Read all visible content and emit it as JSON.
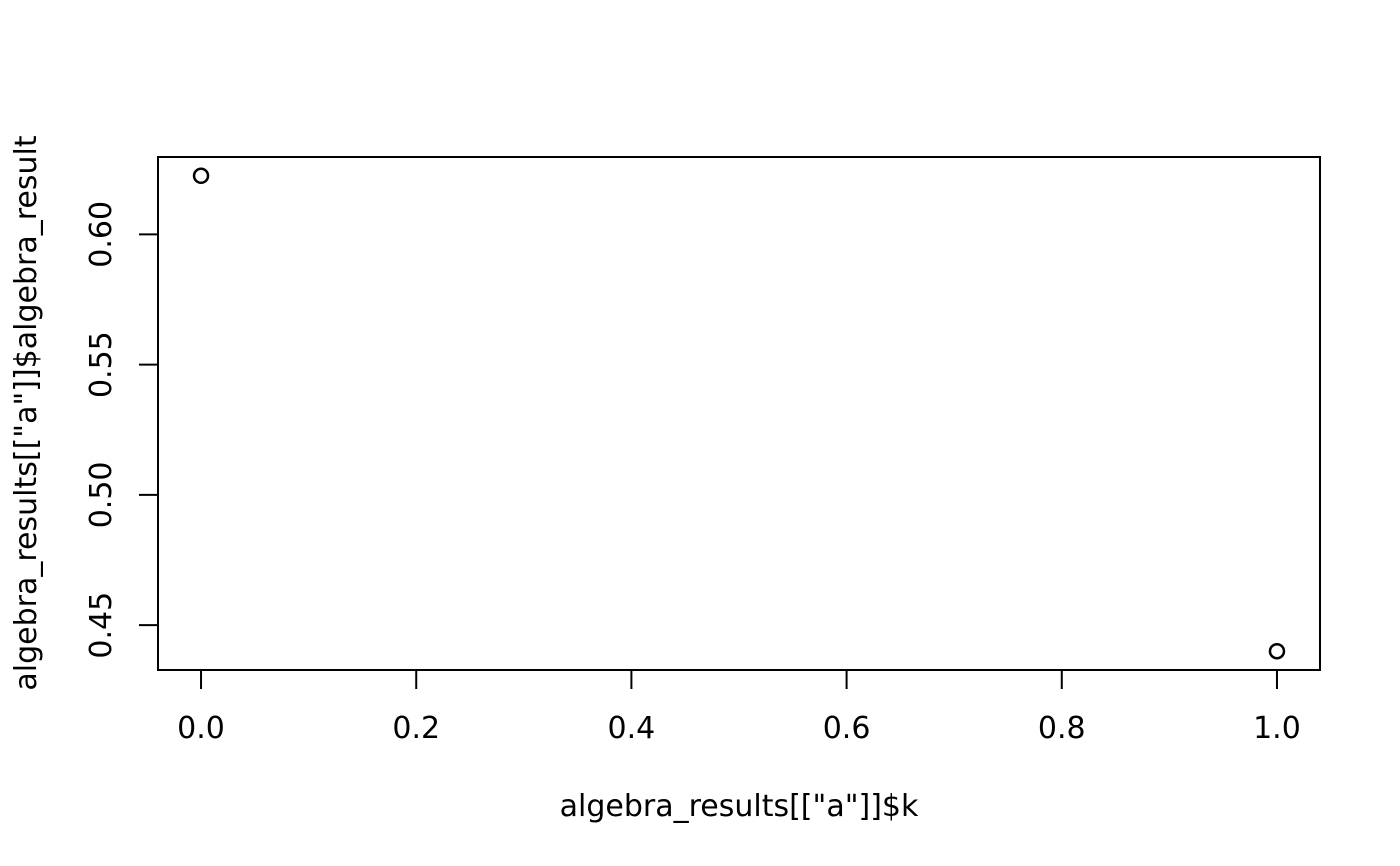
{
  "chart_data": {
    "type": "scatter",
    "xlabel": "algebra_results[[\"a\"]]$k",
    "ylabel": "algebra_results[[\"a\"]]$algebra_result",
    "x_ticks": [
      0.0,
      0.2,
      0.4,
      0.6,
      0.8,
      1.0
    ],
    "x_tick_labels": [
      "0.0",
      "0.2",
      "0.4",
      "0.6",
      "0.8",
      "1.0"
    ],
    "y_ticks": [
      0.45,
      0.5,
      0.55,
      0.6
    ],
    "y_tick_labels": [
      "0.45",
      "0.50",
      "0.55",
      "0.60"
    ],
    "xlim": [
      -0.04,
      1.04
    ],
    "ylim": [
      0.4328,
      0.6297
    ],
    "points": [
      {
        "x": 0,
        "y": 0.6225
      },
      {
        "x": 1,
        "y": 0.44
      }
    ],
    "marker": "open-circle",
    "grid": false,
    "colors": {
      "ink": "#000000",
      "background": "#ffffff"
    }
  }
}
